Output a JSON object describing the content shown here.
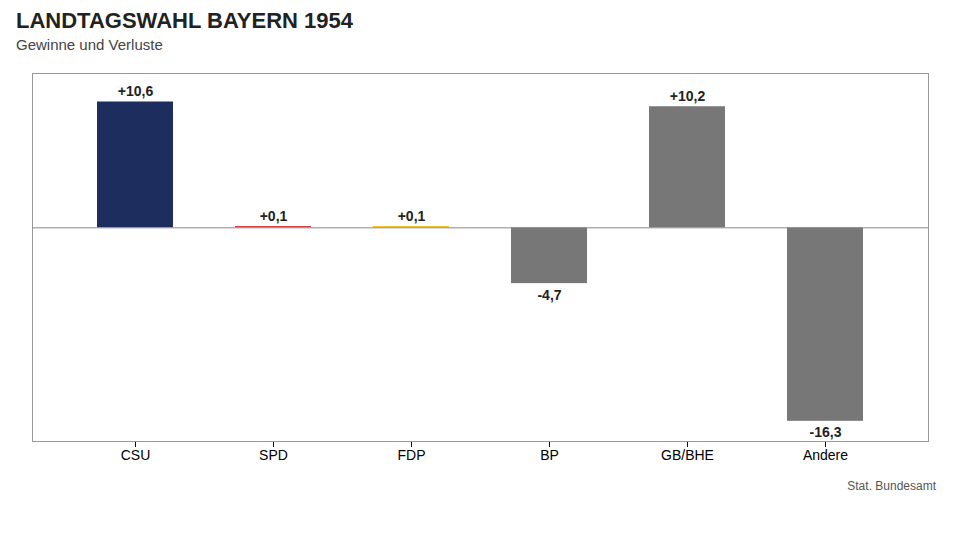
{
  "chart_data": {
    "type": "bar",
    "title": "LANDTAGSWAHL BAYERN 1954",
    "subtitle": "Gewinne und Verluste",
    "annotations": [
      "Stat. Bundesamt"
    ],
    "categories": [
      "CSU",
      "SPD",
      "FDP",
      "BP",
      "GB/BHE",
      "Andere"
    ],
    "values": [
      10.6,
      0.1,
      0.1,
      -4.7,
      10.2,
      -16.3
    ],
    "value_labels": [
      "+10,6",
      "+0,1",
      "+0,1",
      "-4,7",
      "+10,2",
      "-16,3"
    ],
    "colors": [
      "#1c2d5e",
      "#cc2222",
      "#f0b800",
      "#777777",
      "#777777",
      "#777777"
    ],
    "ylim": [
      -18,
      13
    ],
    "grid": false,
    "data_labels": true,
    "tick_labels": "x"
  }
}
